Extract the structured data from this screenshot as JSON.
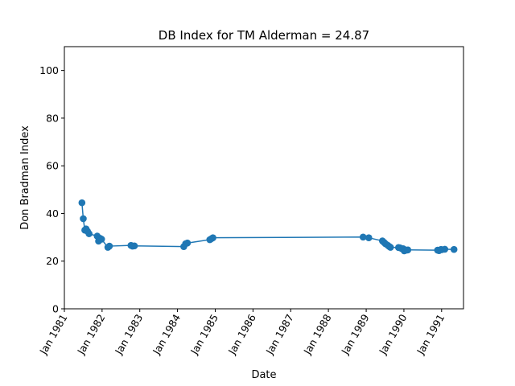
{
  "chart_data": {
    "type": "line",
    "title": "DB Index for TM Alderman = 24.87",
    "xlabel": "Date",
    "ylabel": "Don Bradman Index",
    "ylim": [
      0,
      110
    ],
    "xlim": [
      "1981-01-01",
      "1991-08-01"
    ],
    "yticks": [
      0,
      20,
      40,
      60,
      80,
      100
    ],
    "xticks": [
      {
        "date": "1981-01-01",
        "label": "Jan 1981"
      },
      {
        "date": "1982-01-01",
        "label": "Jan 1982"
      },
      {
        "date": "1983-01-01",
        "label": "Jan 1983"
      },
      {
        "date": "1984-01-01",
        "label": "Jan 1984"
      },
      {
        "date": "1985-01-01",
        "label": "Jan 1985"
      },
      {
        "date": "1986-01-01",
        "label": "Jan 1986"
      },
      {
        "date": "1987-01-01",
        "label": "Jan 1987"
      },
      {
        "date": "1988-01-01",
        "label": "Jan 1988"
      },
      {
        "date": "1989-01-01",
        "label": "Jan 1989"
      },
      {
        "date": "1990-01-01",
        "label": "Jan 1990"
      },
      {
        "date": "1991-01-01",
        "label": "Jan 1991"
      }
    ],
    "grid": false,
    "color": "#1f77b4",
    "series": [
      {
        "x": [
          "1981-06-20",
          "1981-07-03",
          "1981-07-18",
          "1981-07-30",
          "1981-08-13",
          "1981-08-28",
          "1981-11-15",
          "1981-11-28",
          "1981-12-12",
          "1981-12-27",
          "1982-02-26",
          "1982-03-13",
          "1982-10-08",
          "1982-10-23",
          "1982-11-10",
          "1984-03-02",
          "1984-03-20",
          "1984-04-06",
          "1984-11-09",
          "1984-11-24",
          "1984-12-09",
          "1988-12-02",
          "1989-01-26",
          "1989-06-07",
          "1989-06-22",
          "1989-07-06",
          "1989-07-27",
          "1989-08-10",
          "1989-08-24",
          "1989-11-10",
          "1989-11-24",
          "1989-12-08",
          "1989-12-26",
          "1990-01-04",
          "1990-01-25",
          "1990-02-08",
          "1990-11-23",
          "1990-12-07",
          "1990-12-26",
          "1991-01-04",
          "1991-02-01",
          "1991-05-01"
        ],
        "y": [
          44.5,
          37.8,
          33.0,
          33.5,
          32.5,
          31.5,
          30.5,
          28.4,
          29.6,
          29.2,
          25.8,
          26.3,
          26.6,
          26.3,
          26.4,
          26.1,
          27.3,
          27.6,
          29.0,
          29.4,
          29.8,
          30.1,
          29.8,
          28.5,
          27.9,
          27.3,
          26.7,
          26.2,
          25.8,
          25.7,
          25.6,
          25.3,
          25.2,
          24.3,
          24.6,
          24.7,
          24.6,
          24.4,
          24.9,
          24.8,
          25.0,
          24.9
        ]
      }
    ]
  }
}
